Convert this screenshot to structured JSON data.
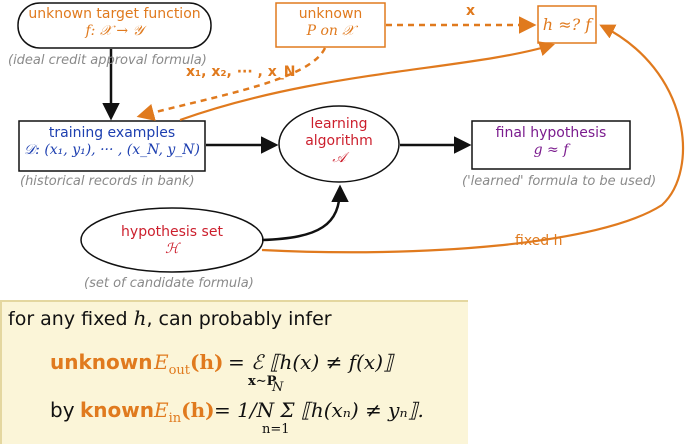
{
  "target_function": {
    "title": "unknown target function",
    "formula": "f: 𝒳 → 𝒴",
    "caption": "(ideal credit approval formula)"
  },
  "distribution": {
    "line1": "unknown",
    "line2": "P on 𝒳",
    "samples_label": "x₁, x₂, ··· , x_N",
    "x_label": "x"
  },
  "check_box": {
    "label": "h ≈? f"
  },
  "training": {
    "title": "training examples",
    "formula": "𝒟: (x₁, y₁), ··· , (x_N, y_N)",
    "caption": "(historical records in bank)"
  },
  "algorithm": {
    "line1": "learning",
    "line2": "algorithm",
    "symbol": "𝒜"
  },
  "final": {
    "title": "final hypothesis",
    "formula": "g ≈ f",
    "caption": "('learned' formula to be used)"
  },
  "hypothesis_set": {
    "title": "hypothesis set",
    "symbol": "ℋ",
    "caption": "(set of candidate formula)"
  },
  "fixed_h_label": "fixed h",
  "bottom": {
    "intro_pre": "for any fixed ",
    "intro_var": "h",
    "intro_post": ", can probably infer",
    "eq1_word": "unknown",
    "eq1_lhs": "E",
    "eq1_sub": "out",
    "eq1_arg": "(h)",
    "eq1_rhs": "= ℰ ⟦h(x) ≠ f(x)⟧",
    "eq1_under": "x∼P",
    "eq2_pre": "by",
    "eq2_word": "known",
    "eq2_lhs": "E",
    "eq2_sub": "in",
    "eq2_arg": "(h)",
    "eq2_rhs": "= 1/N Σ ⟦h(xₙ) ≠ yₙ⟧.",
    "eq2_top": "N",
    "eq2_bottom": "n=1"
  },
  "colors": {
    "blue": "#1d3fb0",
    "red": "#cc1f2d",
    "orange": "#e07a1e",
    "purple": "#7b1c8e",
    "panel": "#fbf5d8"
  }
}
